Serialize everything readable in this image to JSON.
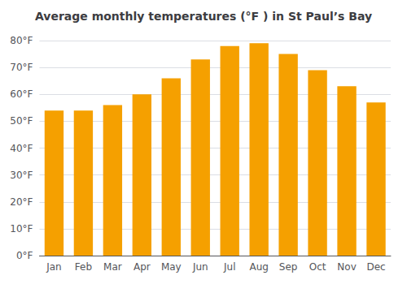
{
  "chart_data": {
    "type": "bar",
    "title": "Average monthly temperatures (°F ) in St Paul’s Bay",
    "categories": [
      "Jan",
      "Feb",
      "Mar",
      "Apr",
      "May",
      "Jun",
      "Jul",
      "Aug",
      "Sep",
      "Oct",
      "Nov",
      "Dec"
    ],
    "values": [
      54,
      54,
      56,
      60,
      66,
      73,
      78,
      79,
      75,
      69,
      63,
      57
    ],
    "color": "#F5A000",
    "ylim": [
      0,
      80
    ],
    "yticks": [
      {
        "value": 0,
        "label": "0°F"
      },
      {
        "value": 10,
        "label": "10°F"
      },
      {
        "value": 20,
        "label": "20°F"
      },
      {
        "value": 30,
        "label": "30°F"
      },
      {
        "value": 40,
        "label": "40°F"
      },
      {
        "value": 50,
        "label": "50°F"
      },
      {
        "value": 60,
        "label": "60°F"
      },
      {
        "value": 70,
        "label": "70°F"
      },
      {
        "value": 80,
        "label": "80°F"
      }
    ],
    "grid": true
  }
}
